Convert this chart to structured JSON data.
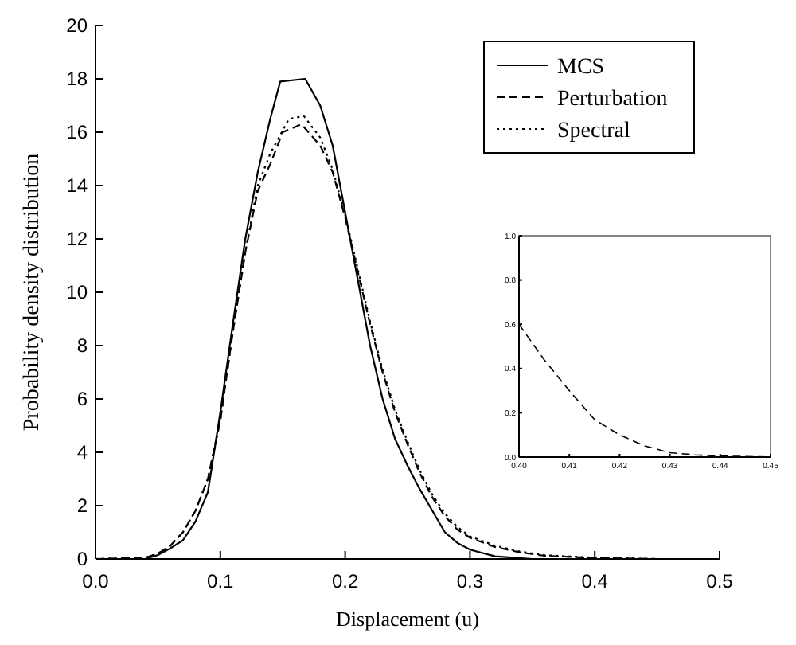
{
  "chart_data": [
    {
      "type": "line",
      "xlabel": "Displacement (u)",
      "ylabel": "Probability density distribution",
      "xlim": [
        0,
        0.5
      ],
      "ylim": [
        0,
        20
      ],
      "xticks": [
        {
          "value": 0,
          "label": "0.0"
        },
        {
          "value": 0.1,
          "label": "0.1"
        },
        {
          "value": 0.2,
          "label": "0.2"
        },
        {
          "value": 0.3,
          "label": "0.3"
        },
        {
          "value": 0.4,
          "label": "0.4"
        },
        {
          "value": 0.5,
          "label": "0.5"
        }
      ],
      "yticks": [
        0,
        2,
        4,
        6,
        8,
        10,
        12,
        14,
        16,
        18,
        20
      ],
      "legend": "top right",
      "grid": false,
      "series": [
        {
          "name": "MCS",
          "color": "#000000",
          "line_style": "solid",
          "x": [
            0,
            0.04,
            0.05,
            0.06,
            0.07,
            0.08,
            0.09,
            0.1,
            0.11,
            0.12,
            0.13,
            0.14,
            0.148,
            0.168,
            0.18,
            0.19,
            0.2,
            0.21,
            0.22,
            0.23,
            0.24,
            0.25,
            0.26,
            0.27,
            0.28,
            0.29,
            0.3,
            0.32,
            0.35,
            0.5
          ],
          "values": [
            0,
            0,
            0.15,
            0.4,
            0.7,
            1.4,
            2.5,
            5.5,
            8.8,
            12,
            14.5,
            16.5,
            17.9,
            18,
            17,
            15.5,
            13,
            10.5,
            8,
            6,
            4.5,
            3.5,
            2.6,
            1.8,
            1.0,
            0.6,
            0.35,
            0.1,
            0,
            0
          ]
        },
        {
          "name": "Perturbation",
          "color": "#000000",
          "line_style": "dashed",
          "x": [
            0,
            0.04,
            0.05,
            0.06,
            0.07,
            0.08,
            0.09,
            0.1,
            0.11,
            0.12,
            0.13,
            0.14,
            0.15,
            0.165,
            0.18,
            0.19,
            0.2,
            0.21,
            0.22,
            0.23,
            0.24,
            0.25,
            0.26,
            0.27,
            0.28,
            0.29,
            0.3,
            0.32,
            0.34,
            0.36,
            0.4,
            0.45,
            0.5
          ],
          "values": [
            0,
            0.05,
            0.2,
            0.5,
            1.0,
            1.8,
            3.0,
            5.2,
            8.5,
            11.5,
            13.8,
            14.8,
            16,
            16.3,
            15.5,
            14.5,
            12.8,
            10.8,
            8.8,
            7,
            5.5,
            4.3,
            3.2,
            2.3,
            1.6,
            1.1,
            0.8,
            0.45,
            0.25,
            0.12,
            0.04,
            0,
            0
          ]
        },
        {
          "name": "Spectral",
          "color": "#000000",
          "line_style": "dotted",
          "x": [
            0,
            0.04,
            0.05,
            0.06,
            0.07,
            0.08,
            0.09,
            0.1,
            0.11,
            0.12,
            0.13,
            0.14,
            0.155,
            0.167,
            0.18,
            0.19,
            0.2,
            0.21,
            0.22,
            0.23,
            0.24,
            0.25,
            0.26,
            0.27,
            0.28,
            0.29,
            0.3,
            0.32,
            0.34,
            0.36,
            0.4,
            0.45,
            0.5
          ],
          "values": [
            0,
            0.05,
            0.2,
            0.5,
            1.0,
            1.8,
            3.0,
            5.2,
            8.5,
            11.5,
            14,
            15.2,
            16.5,
            16.6,
            15.8,
            14.6,
            12.9,
            10.9,
            8.9,
            7.1,
            5.6,
            4.4,
            3.3,
            2.4,
            1.7,
            1.2,
            0.85,
            0.5,
            0.28,
            0.14,
            0.05,
            0,
            0
          ]
        }
      ]
    },
    {
      "type": "line",
      "xlim": [
        0.4,
        0.45
      ],
      "ylim": [
        0,
        1
      ],
      "xticks": [
        {
          "value": 0.4,
          "label": "0.40"
        },
        {
          "value": 0.41,
          "label": "0.41"
        },
        {
          "value": 0.42,
          "label": "0.42"
        },
        {
          "value": 0.43,
          "label": "0.43"
        },
        {
          "value": 0.44,
          "label": "0.44"
        },
        {
          "value": 0.45,
          "label": "0.45"
        }
      ],
      "yticks": [
        {
          "value": 0,
          "label": "0.0"
        },
        {
          "value": 0.2,
          "label": "0.2"
        },
        {
          "value": 0.4,
          "label": "0.4"
        },
        {
          "value": 0.6,
          "label": "0.6"
        },
        {
          "value": 0.8,
          "label": "0.8"
        },
        {
          "value": 1,
          "label": "1.0"
        }
      ],
      "legend": false,
      "grid": false,
      "series": [
        {
          "color": "#000000",
          "line_style": "dashed",
          "x": [
            0.4,
            0.405,
            0.41,
            0.415,
            0.42,
            0.425,
            0.43,
            0.435,
            0.44,
            0.45
          ],
          "values": [
            0.6,
            0.44,
            0.3,
            0.17,
            0.1,
            0.05,
            0.02,
            0.01,
            0.005,
            0
          ]
        }
      ]
    }
  ]
}
